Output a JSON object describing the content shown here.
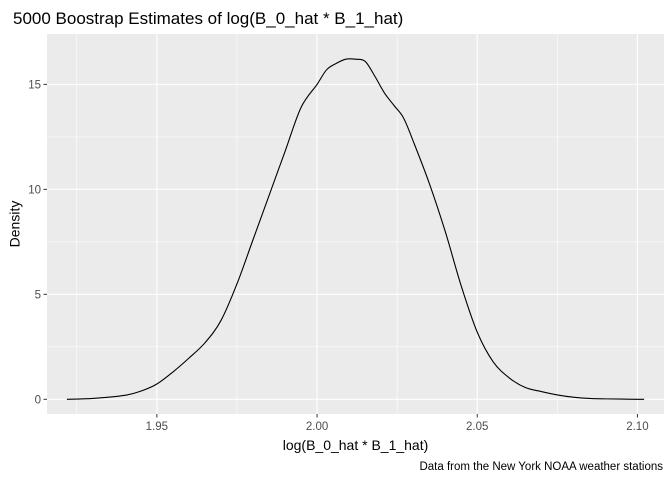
{
  "chart_data": {
    "type": "line",
    "title": "5000 Boostrap Estimates of log(B_0_hat * B_1_hat)",
    "xlabel": "log(B_0_hat * B_1_hat)",
    "ylabel": "Density",
    "caption": "Data from the New York NOAA weather stations",
    "xlim": [
      1.9157,
      2.1083
    ],
    "ylim": [
      -0.7,
      17.4
    ],
    "x_ticks": [
      1.95,
      2.0,
      2.05,
      2.1
    ],
    "x_tick_labels": [
      "1.95",
      "2.00",
      "2.05",
      "2.10"
    ],
    "x_minor_ticks": [
      1.925,
      1.975,
      2.025,
      2.075
    ],
    "y_ticks": [
      0,
      5,
      10,
      15
    ],
    "y_tick_labels": [
      "0",
      "5",
      "10",
      "15"
    ],
    "y_minor_ticks": [
      2.5,
      7.5,
      12.5
    ],
    "panel_background": "#ebebeb",
    "grid_color": "#ffffff",
    "line_color": "#000000",
    "series": [
      {
        "name": "density",
        "x": [
          1.9219,
          1.93,
          1.94,
          1.945,
          1.95,
          1.955,
          1.96,
          1.965,
          1.97,
          1.975,
          1.98,
          1.985,
          1.99,
          1.995,
          2.0,
          2.003,
          2.006,
          2.009,
          2.012,
          2.015,
          2.018,
          2.021,
          2.024,
          2.027,
          2.03,
          2.035,
          2.04,
          2.045,
          2.05,
          2.055,
          2.06,
          2.065,
          2.07,
          2.075,
          2.08,
          2.085,
          2.09,
          2.095,
          2.1,
          2.1021
        ],
        "y": [
          0.0,
          0.04,
          0.19,
          0.39,
          0.73,
          1.3,
          1.96,
          2.69,
          3.75,
          5.5,
          7.6,
          9.7,
          11.8,
          13.9,
          15.0,
          15.7,
          16.0,
          16.2,
          16.2,
          16.1,
          15.4,
          14.6,
          14.0,
          13.4,
          12.3,
          10.3,
          8.0,
          5.4,
          3.2,
          1.78,
          1.02,
          0.56,
          0.37,
          0.21,
          0.1,
          0.04,
          0.02,
          0.01,
          0.0,
          0.0
        ]
      }
    ]
  }
}
